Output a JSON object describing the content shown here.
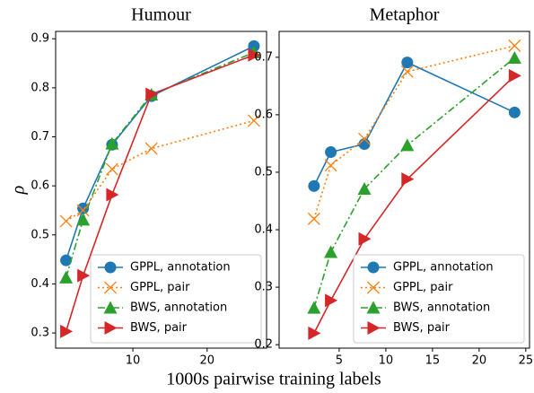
{
  "chart_data": [
    {
      "type": "line",
      "title": "Humour",
      "ylabel": "ρ",
      "xlabel": "1000s pairwise training labels",
      "xlim": [
        -0.4,
        28.0
      ],
      "ylim": [
        0.269,
        0.915
      ],
      "xticks": [
        10,
        20
      ],
      "yticks": [
        0.3,
        0.4,
        0.5,
        0.6,
        0.7,
        0.8,
        0.9
      ],
      "legend": "lower right",
      "series": [
        {
          "name": "GPPL, annotation",
          "color": "#1f77b4",
          "linestyle": "solid",
          "marker": "circle",
          "x": [
            1.0,
            3.3,
            7.2,
            12.5,
            26.3
          ],
          "values": [
            0.448,
            0.554,
            0.684,
            0.783,
            0.885
          ]
        },
        {
          "name": "GPPL, pair",
          "color": "#ff7f0e",
          "linestyle": "dotted",
          "marker": "x",
          "x": [
            1.0,
            3.3,
            7.2,
            12.5,
            26.3
          ],
          "values": [
            0.528,
            0.55,
            0.634,
            0.676,
            0.733
          ]
        },
        {
          "name": "BWS, annotation",
          "color": "#2ca02c",
          "linestyle": "dashdot",
          "marker": "triangle-up",
          "x": [
            1.0,
            3.3,
            7.2,
            12.5,
            26.3
          ],
          "values": [
            0.413,
            0.531,
            0.686,
            0.786,
            0.872
          ]
        },
        {
          "name": "BWS, pair",
          "color": "#d62728",
          "linestyle": "solid",
          "marker": "triangle-right",
          "x": [
            1.0,
            3.3,
            7.2,
            12.5,
            26.3
          ],
          "values": [
            0.303,
            0.417,
            0.582,
            0.787,
            0.867
          ]
        }
      ]
    },
    {
      "type": "line",
      "title": "Metaphor",
      "xlim": [
        -1.44,
        25.4
      ],
      "ylim": [
        0.194,
        0.745
      ],
      "xticks": [
        5,
        10,
        15,
        20,
        25
      ],
      "yticks": [
        0.2,
        0.3,
        0.4,
        0.5,
        0.6,
        0.7
      ],
      "legend": "lower right",
      "series": [
        {
          "name": "GPPL, annotation",
          "color": "#1f77b4",
          "linestyle": "solid",
          "marker": "circle",
          "x": [
            2.3,
            4.1,
            7.7,
            12.3,
            23.8
          ],
          "values": [
            0.476,
            0.535,
            0.549,
            0.691,
            0.604
          ]
        },
        {
          "name": "GPPL, pair",
          "color": "#ff7f0e",
          "linestyle": "dotted",
          "marker": "x",
          "x": [
            2.3,
            4.1,
            7.7,
            12.3,
            23.8
          ],
          "values": [
            0.419,
            0.512,
            0.558,
            0.675,
            0.72
          ]
        },
        {
          "name": "BWS, annotation",
          "color": "#2ca02c",
          "linestyle": "dashdot",
          "marker": "triangle-up",
          "x": [
            2.3,
            4.1,
            7.7,
            12.3,
            23.8
          ],
          "values": [
            0.264,
            0.361,
            0.471,
            0.547,
            0.699
          ]
        },
        {
          "name": "BWS, pair",
          "color": "#d62728",
          "linestyle": "solid",
          "marker": "triangle-right",
          "x": [
            2.3,
            4.1,
            7.7,
            12.3,
            23.8
          ],
          "values": [
            0.22,
            0.277,
            0.384,
            0.488,
            0.668
          ]
        }
      ]
    }
  ]
}
